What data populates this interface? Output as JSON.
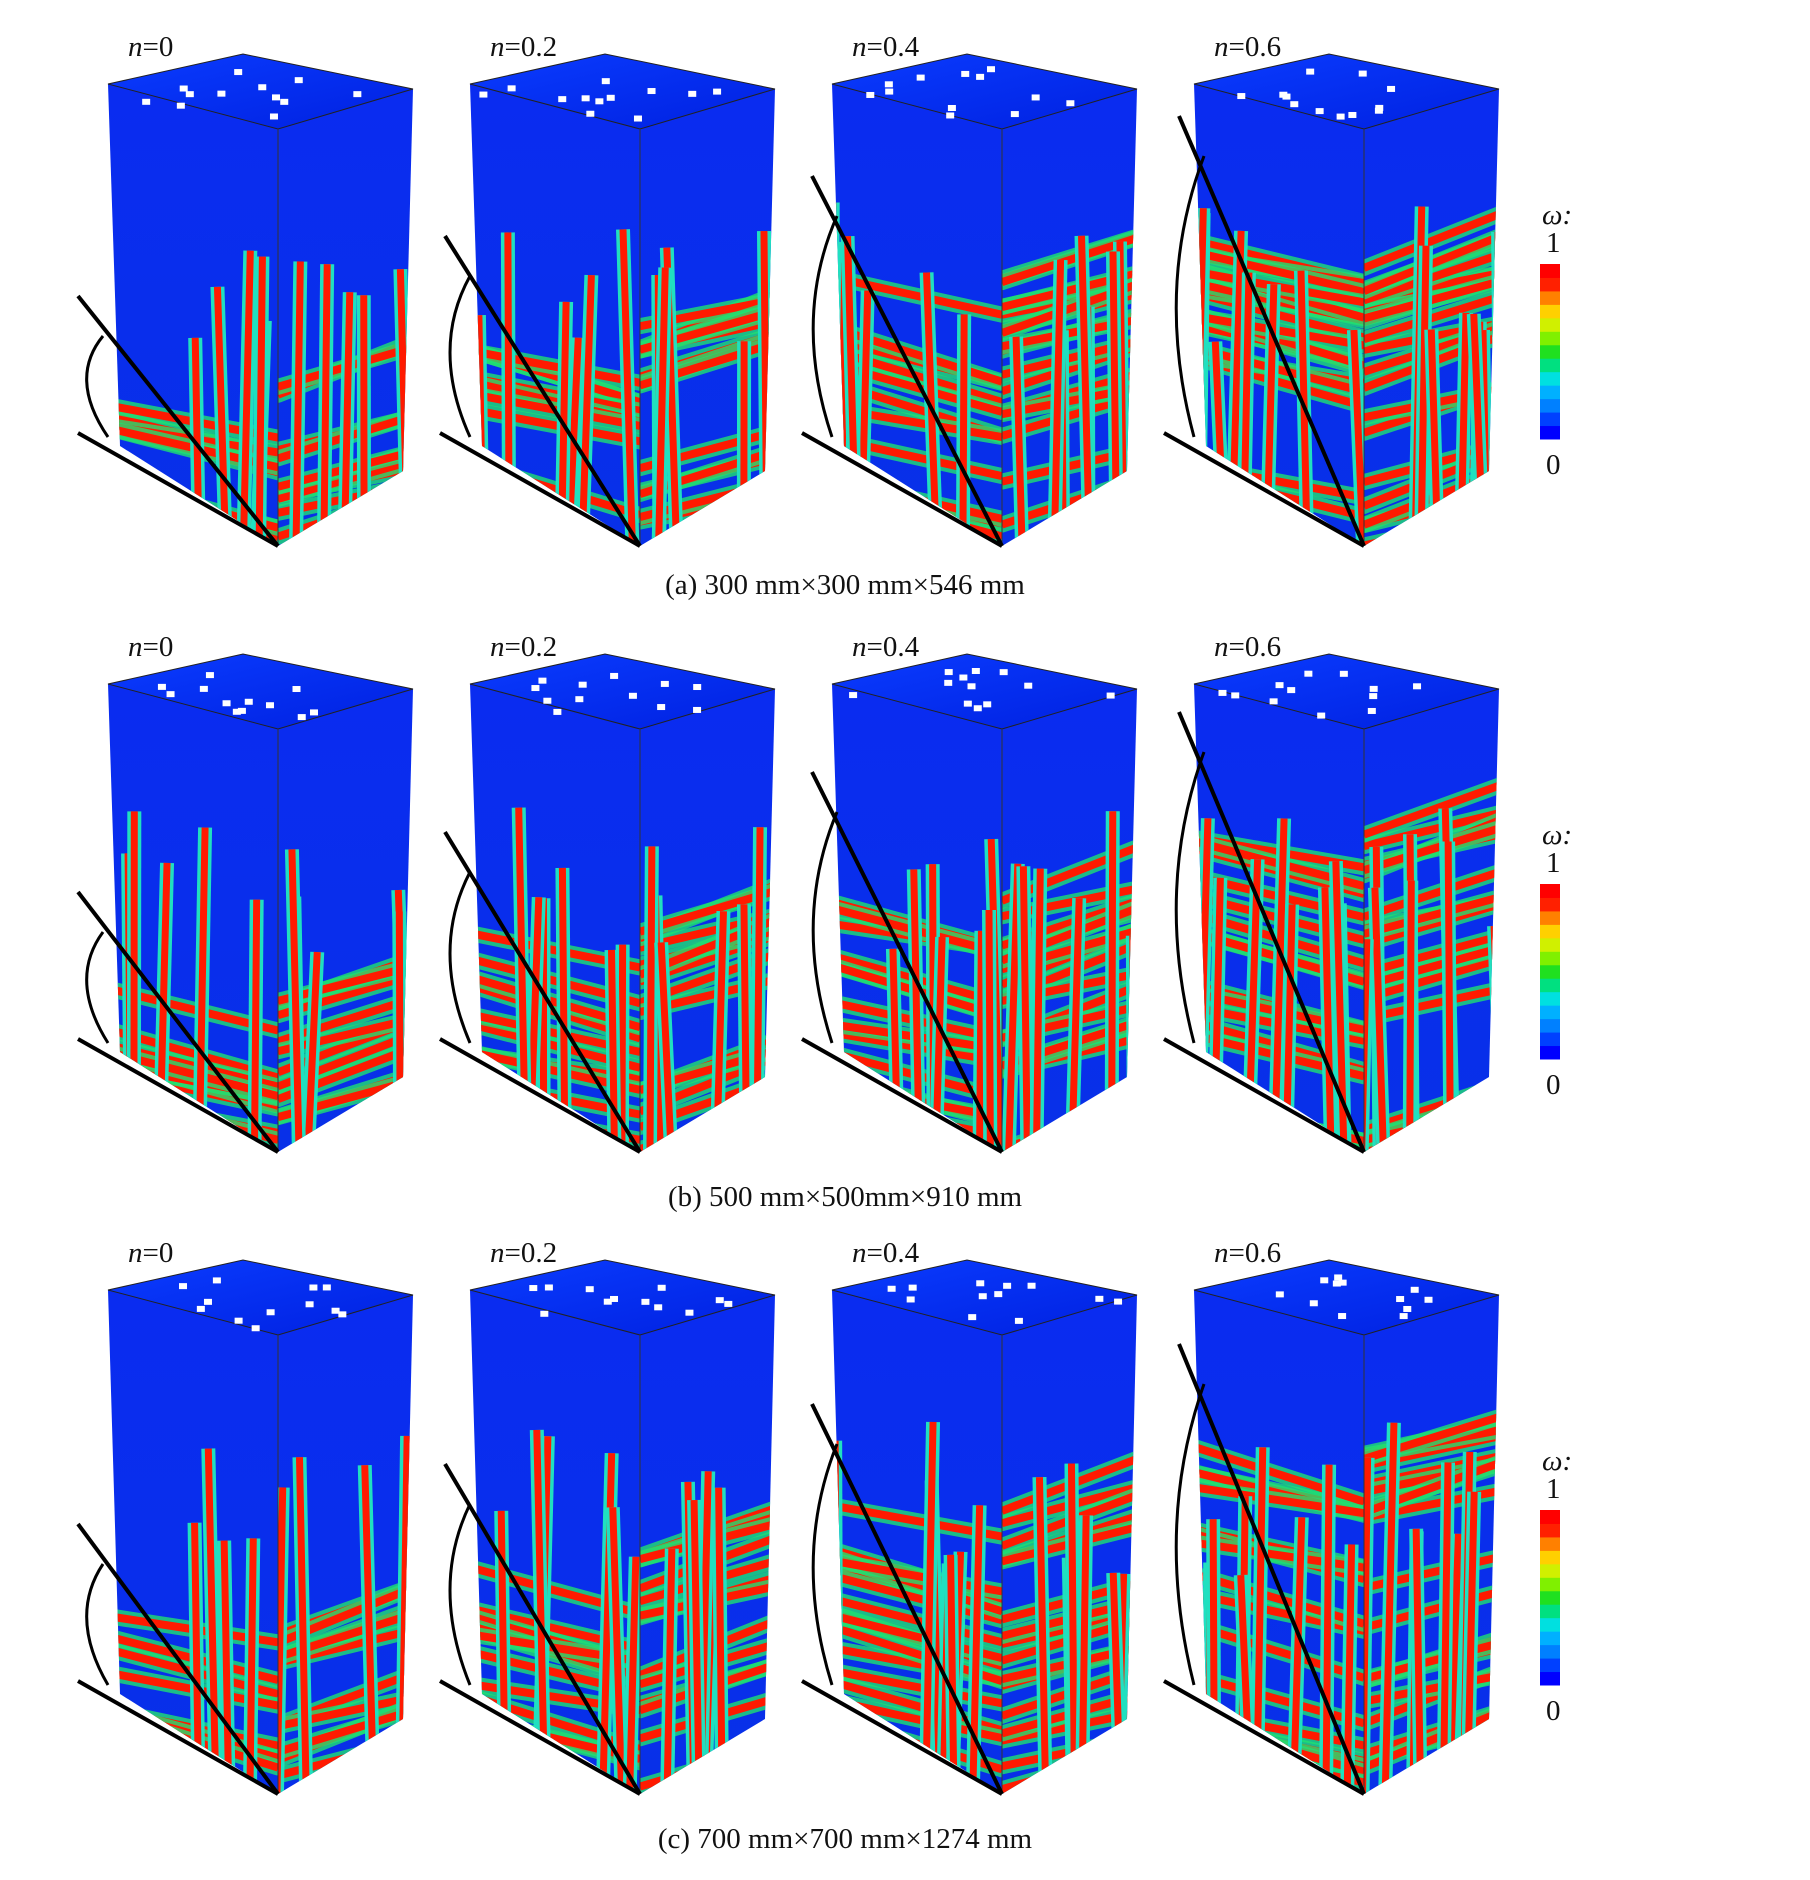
{
  "rows": [
    {
      "caption": "(a) 300 mm×300 mm×546 mm",
      "panels": [
        {
          "symbol": "n",
          "value": "=0"
        },
        {
          "symbol": "n",
          "value": "=0.2"
        },
        {
          "symbol": "n",
          "value": "=0.4"
        },
        {
          "symbol": "n",
          "value": "=0.6"
        }
      ],
      "colorbar": {
        "symbol": "ω:",
        "max": "1",
        "min": "0"
      }
    },
    {
      "caption": "(b) 500 mm×500mm×910 mm",
      "panels": [
        {
          "symbol": "n",
          "value": "=0"
        },
        {
          "symbol": "n",
          "value": "=0.2"
        },
        {
          "symbol": "n",
          "value": "=0.4"
        },
        {
          "symbol": "n",
          "value": "=0.6"
        }
      ],
      "colorbar": {
        "symbol": "ω:",
        "max": "1",
        "min": "0"
      }
    },
    {
      "caption": "(c) 700 mm×700 mm×1274 mm",
      "panels": [
        {
          "symbol": "n",
          "value": "=0"
        },
        {
          "symbol": "n",
          "value": "=0.2"
        },
        {
          "symbol": "n",
          "value": "=0.4"
        },
        {
          "symbol": "n",
          "value": "=0.6"
        }
      ],
      "colorbar": {
        "symbol": "ω:",
        "max": "1",
        "min": "0"
      }
    }
  ]
}
